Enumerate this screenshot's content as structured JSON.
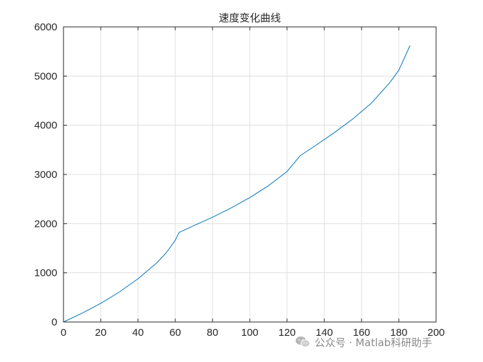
{
  "chart_data": {
    "type": "line",
    "title": "速度变化曲线",
    "xlabel": "",
    "ylabel": "",
    "xlim": [
      0,
      200
    ],
    "ylim": [
      0,
      6000
    ],
    "x_ticks": [
      0,
      20,
      40,
      60,
      80,
      100,
      120,
      140,
      160,
      180,
      200
    ],
    "y_ticks": [
      0,
      1000,
      2000,
      3000,
      4000,
      5000,
      6000
    ],
    "grid": true,
    "series": [
      {
        "color": "#0072BD",
        "x": [
          0,
          10,
          20,
          30,
          40,
          50,
          55,
          60,
          62,
          70,
          80,
          90,
          100,
          110,
          120,
          127,
          135,
          145,
          155,
          165,
          175,
          180,
          186
        ],
        "y": [
          0,
          180,
          380,
          610,
          880,
          1200,
          1400,
          1660,
          1820,
          1960,
          2130,
          2320,
          2530,
          2770,
          3060,
          3380,
          3580,
          3840,
          4120,
          4440,
          4860,
          5120,
          5620
        ]
      }
    ]
  },
  "watermark": {
    "icon": "wechat-icon",
    "text": "公众号 · Matlab科研助手"
  }
}
